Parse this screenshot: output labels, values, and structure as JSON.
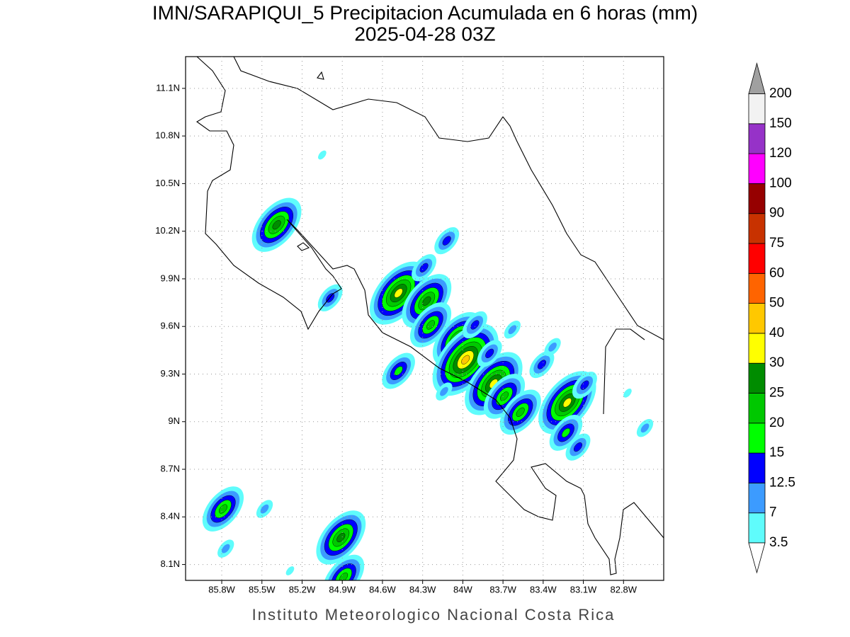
{
  "chart_data": {
    "type": "contour-map",
    "title": "IMN/SARAPIQUI_5 Precipitacion Acumulada en 6 horas (mm)",
    "subtitle": "2025-04-28 03Z",
    "footer": "Instituto Meteorologico Nacional Costa Rica",
    "xlim": [
      -86.07,
      -82.5
    ],
    "ylim": [
      8.0,
      11.3
    ],
    "grid": true,
    "xticks": [
      {
        "value": -85.8,
        "label": "85.8W"
      },
      {
        "value": -85.5,
        "label": "85.5W"
      },
      {
        "value": -85.2,
        "label": "85.2W"
      },
      {
        "value": -84.9,
        "label": "84.9W"
      },
      {
        "value": -84.6,
        "label": "84.6W"
      },
      {
        "value": -84.3,
        "label": "84.3W"
      },
      {
        "value": -84.0,
        "label": "84W"
      },
      {
        "value": -83.7,
        "label": "83.7W"
      },
      {
        "value": -83.4,
        "label": "83.4W"
      },
      {
        "value": -83.1,
        "label": "83.1W"
      },
      {
        "value": -82.8,
        "label": "82.8W"
      }
    ],
    "yticks": [
      {
        "value": 8.1,
        "label": "8.1N"
      },
      {
        "value": 8.4,
        "label": "8.4N"
      },
      {
        "value": 8.7,
        "label": "8.7N"
      },
      {
        "value": 9.0,
        "label": "9N"
      },
      {
        "value": 9.3,
        "label": "9.3N"
      },
      {
        "value": 9.6,
        "label": "9.6N"
      },
      {
        "value": 9.9,
        "label": "9.9N"
      },
      {
        "value": 10.2,
        "label": "10.2N"
      },
      {
        "value": 10.5,
        "label": "10.5N"
      },
      {
        "value": 10.8,
        "label": "10.8N"
      },
      {
        "value": 11.1,
        "label": "11.1N"
      }
    ],
    "colorbar": {
      "levels": [
        3.5,
        7,
        12.5,
        15,
        20,
        25,
        30,
        40,
        50,
        60,
        75,
        90,
        100,
        120,
        150,
        200
      ],
      "colors": [
        "#5ffcfc",
        "#3c9bff",
        "#0000ff",
        "#00ff00",
        "#00c800",
        "#008c00",
        "#ffff00",
        "#ffc800",
        "#ff6400",
        "#ff0000",
        "#c83200",
        "#960000",
        "#ff00ff",
        "#9632c8",
        "#f2f2f2"
      ],
      "below_color": "#ffffff",
      "above_color": "#a0a0a0"
    },
    "cells": [
      {
        "lon": -85.39,
        "lat": 10.24,
        "peak": 25
      },
      {
        "lon": -84.48,
        "lat": 9.81,
        "peak": 30
      },
      {
        "lon": -84.27,
        "lat": 9.76,
        "peak": 25
      },
      {
        "lon": -84.04,
        "lat": 9.52,
        "peak": 25
      },
      {
        "lon": -83.98,
        "lat": 9.39,
        "peak": 40
      },
      {
        "lon": -83.77,
        "lat": 9.24,
        "peak": 30
      },
      {
        "lon": -83.69,
        "lat": 9.16,
        "peak": 20
      },
      {
        "lon": -83.57,
        "lat": 9.06,
        "peak": 20
      },
      {
        "lon": -83.22,
        "lat": 9.12,
        "peak": 30
      },
      {
        "lon": -84.91,
        "lat": 8.27,
        "peak": 25
      },
      {
        "lon": -85.79,
        "lat": 8.45,
        "peak": 20
      },
      {
        "lon": -84.99,
        "lat": 9.78,
        "peak": 12.5
      },
      {
        "lon": -84.12,
        "lat": 10.14,
        "peak": 12.5
      },
      {
        "lon": -84.29,
        "lat": 9.97,
        "peak": 12.5
      },
      {
        "lon": -84.24,
        "lat": 9.61,
        "peak": 20
      },
      {
        "lon": -84.48,
        "lat": 9.32,
        "peak": 15
      },
      {
        "lon": -84.89,
        "lat": 8.02,
        "peak": 20
      },
      {
        "lon": -85.77,
        "lat": 8.2,
        "peak": 7
      },
      {
        "lon": -83.23,
        "lat": 8.93,
        "peak": 15
      },
      {
        "lon": -83.41,
        "lat": 9.36,
        "peak": 12.5
      },
      {
        "lon": -82.64,
        "lat": 8.96,
        "peak": 7
      },
      {
        "lon": -82.77,
        "lat": 9.18,
        "peak": 3.5
      },
      {
        "lon": -83.09,
        "lat": 9.23,
        "peak": 12.5
      },
      {
        "lon": -85.48,
        "lat": 8.45,
        "peak": 7
      },
      {
        "lon": -83.33,
        "lat": 9.47,
        "peak": 7
      },
      {
        "lon": -85.05,
        "lat": 10.68,
        "peak": 3.5
      },
      {
        "lon": -83.91,
        "lat": 9.61,
        "peak": 12.5
      },
      {
        "lon": -83.8,
        "lat": 9.43,
        "peak": 12.5
      },
      {
        "lon": -83.63,
        "lat": 9.58,
        "peak": 7
      },
      {
        "lon": -83.14,
        "lat": 8.84,
        "peak": 12.5
      },
      {
        "lon": -84.14,
        "lat": 9.19,
        "peak": 7
      },
      {
        "lon": -85.29,
        "lat": 8.06,
        "peak": 3.5
      }
    ]
  }
}
